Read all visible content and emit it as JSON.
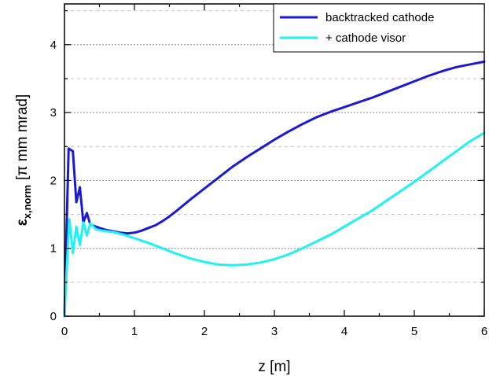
{
  "chart_data": {
    "type": "line",
    "title": "",
    "xlabel": "z [m]",
    "ylabel_parts": {
      "symbol": "ε",
      "subscript": "x,norm",
      "unit": "[π mm mrad]"
    },
    "xlim": [
      0,
      6
    ],
    "ylim": [
      0,
      4.6
    ],
    "x_ticks": [
      0,
      1,
      2,
      3,
      4,
      5,
      6
    ],
    "y_ticks": [
      0,
      1,
      2,
      3,
      4
    ],
    "grid": "horizontal dotted",
    "legend_position": "top-right",
    "series": [
      {
        "name": "backtracked cathode",
        "color": "#1a1ad2",
        "x": [
          0,
          0.03,
          0.06,
          0.12,
          0.17,
          0.22,
          0.27,
          0.32,
          0.37,
          0.42,
          0.5,
          0.6,
          0.7,
          0.8,
          0.9,
          1.0,
          1.1,
          1.2,
          1.3,
          1.4,
          1.5,
          1.6,
          1.8,
          2.0,
          2.2,
          2.4,
          2.6,
          2.8,
          3.0,
          3.2,
          3.4,
          3.6,
          3.8,
          4.0,
          4.2,
          4.4,
          4.6,
          4.8,
          5.0,
          5.2,
          5.4,
          5.6,
          5.8,
          6.0
        ],
        "y": [
          0.0,
          1.3,
          2.47,
          2.43,
          1.68,
          1.9,
          1.38,
          1.52,
          1.35,
          1.33,
          1.3,
          1.27,
          1.25,
          1.23,
          1.22,
          1.23,
          1.26,
          1.3,
          1.34,
          1.4,
          1.47,
          1.55,
          1.72,
          1.88,
          2.04,
          2.2,
          2.34,
          2.47,
          2.6,
          2.72,
          2.83,
          2.93,
          3.01,
          3.08,
          3.15,
          3.22,
          3.3,
          3.38,
          3.46,
          3.54,
          3.61,
          3.67,
          3.71,
          3.75
        ]
      },
      {
        "name": "+ cathode visor",
        "color": "#1ef2f2",
        "x": [
          0,
          0.03,
          0.07,
          0.12,
          0.17,
          0.22,
          0.27,
          0.32,
          0.37,
          0.45,
          0.55,
          0.7,
          0.85,
          1.0,
          1.2,
          1.4,
          1.6,
          1.8,
          2.0,
          2.2,
          2.4,
          2.6,
          2.8,
          3.0,
          3.2,
          3.4,
          3.6,
          3.8,
          4.0,
          4.2,
          4.4,
          4.6,
          4.8,
          5.0,
          5.2,
          5.4,
          5.6,
          5.8,
          6.0
        ],
        "y": [
          0.0,
          0.65,
          1.43,
          0.93,
          1.32,
          1.05,
          1.38,
          1.19,
          1.37,
          1.28,
          1.26,
          1.24,
          1.2,
          1.15,
          1.08,
          1.0,
          0.92,
          0.85,
          0.8,
          0.76,
          0.75,
          0.76,
          0.79,
          0.84,
          0.91,
          1.0,
          1.1,
          1.2,
          1.32,
          1.44,
          1.56,
          1.7,
          1.84,
          1.98,
          2.13,
          2.28,
          2.43,
          2.58,
          2.7
        ]
      }
    ]
  }
}
